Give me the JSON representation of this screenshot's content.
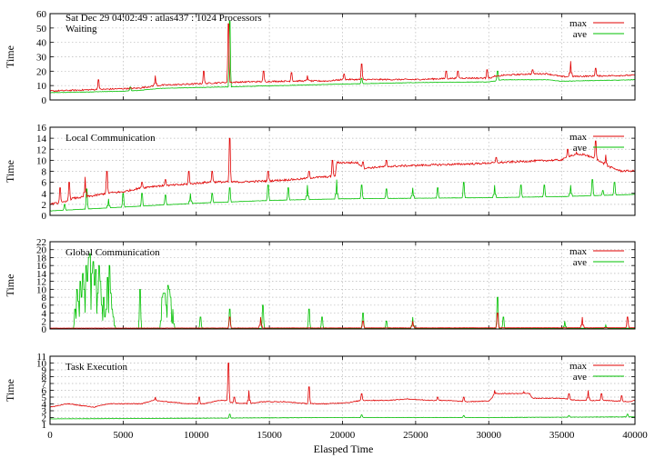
{
  "header": {
    "title": "Sat Dec 29 04:02:49 : atlas437 : 1024 Processors"
  },
  "colors": {
    "max": "#e00000",
    "ave": "#00c000",
    "grid": "#b8b8b8"
  },
  "xaxis": {
    "label": "Elasped Time",
    "range": [
      0,
      40000
    ],
    "ticks": [
      "0",
      "5000",
      "10000",
      "15000",
      "20000",
      "25000",
      "30000",
      "35000",
      "40000"
    ]
  },
  "legend": {
    "max": "max",
    "ave": "ave"
  },
  "chart_data": [
    {
      "type": "line",
      "title": "Waiting",
      "ylabel": "Time",
      "ylim": [
        0,
        60
      ],
      "yticks": [
        "0",
        "10",
        "20",
        "30",
        "40",
        "50",
        "60"
      ],
      "legend_position": "top-right",
      "grid": true,
      "series": [
        {
          "name": "max",
          "base": [
            [
              0,
              6
            ],
            [
              3000,
              7
            ],
            [
              6000,
              8
            ],
            [
              7500,
              10
            ],
            [
              10000,
              11
            ],
            [
              12000,
              12
            ],
            [
              14000,
              12.5
            ],
            [
              17000,
              13
            ],
            [
              19000,
              13
            ],
            [
              20000,
              14
            ],
            [
              25000,
              14
            ],
            [
              28000,
              15
            ],
            [
              30000,
              15
            ],
            [
              31000,
              17
            ],
            [
              33000,
              18
            ],
            [
              34000,
              18
            ],
            [
              35000,
              16
            ],
            [
              40000,
              17
            ]
          ],
          "spikes": [
            [
              12200,
              53
            ],
            [
              3300,
              14
            ],
            [
              7200,
              17
            ],
            [
              10500,
              20
            ],
            [
              14600,
              20
            ],
            [
              16500,
              19
            ],
            [
              17600,
              17
            ],
            [
              20100,
              18
            ],
            [
              21300,
              25
            ],
            [
              27100,
              20
            ],
            [
              27900,
              20
            ],
            [
              29900,
              21
            ],
            [
              30400,
              17
            ],
            [
              33000,
              21
            ],
            [
              35600,
              27
            ],
            [
              37300,
              22
            ]
          ],
          "noise": 1.0
        },
        {
          "name": "ave",
          "base": [
            [
              0,
              5
            ],
            [
              5000,
              6
            ],
            [
              6000,
              6.5
            ],
            [
              7500,
              8
            ],
            [
              12000,
              9
            ],
            [
              16000,
              10
            ],
            [
              20000,
              11
            ],
            [
              25000,
              12
            ],
            [
              30000,
              12.5
            ],
            [
              31000,
              14
            ],
            [
              34000,
              14
            ],
            [
              35000,
              13
            ],
            [
              40000,
              14
            ]
          ],
          "spikes": [
            [
              12300,
              55
            ],
            [
              30600,
              20
            ],
            [
              5500,
              9
            ],
            [
              21300,
              15
            ]
          ],
          "noise": 0.3
        }
      ]
    },
    {
      "type": "line",
      "title": "Local Communication",
      "ylabel": "Time",
      "ylim": [
        0,
        16
      ],
      "yticks": [
        "0",
        "2",
        "4",
        "6",
        "8",
        "10",
        "12",
        "14",
        "16"
      ],
      "legend_position": "top-right",
      "grid": true,
      "series": [
        {
          "name": "max",
          "base": [
            [
              0,
              2
            ],
            [
              1000,
              2.3
            ],
            [
              1500,
              3
            ],
            [
              3000,
              3.5
            ],
            [
              4000,
              4
            ],
            [
              5000,
              4.2
            ],
            [
              6000,
              4.8
            ],
            [
              7000,
              5.2
            ],
            [
              9000,
              5.5
            ],
            [
              11000,
              6
            ],
            [
              13000,
              6
            ],
            [
              15000,
              6.2
            ],
            [
              17000,
              6.5
            ],
            [
              18000,
              6.8
            ],
            [
              19500,
              7
            ],
            [
              19600,
              9.5
            ],
            [
              21000,
              9.5
            ],
            [
              21500,
              8.5
            ],
            [
              23000,
              8.8
            ],
            [
              25000,
              9
            ],
            [
              29000,
              9.3
            ],
            [
              33000,
              9.8
            ],
            [
              35000,
              10
            ],
            [
              35600,
              10.8
            ],
            [
              36500,
              11
            ],
            [
              37500,
              10
            ],
            [
              38000,
              9
            ],
            [
              39000,
              8
            ],
            [
              40000,
              8
            ]
          ],
          "spikes": [
            [
              700,
              5
            ],
            [
              1300,
              6
            ],
            [
              2400,
              7
            ],
            [
              3900,
              8
            ],
            [
              6300,
              6
            ],
            [
              7900,
              6.5
            ],
            [
              9500,
              8
            ],
            [
              11100,
              8
            ],
            [
              12300,
              14
            ],
            [
              14900,
              8
            ],
            [
              17700,
              8
            ],
            [
              19300,
              10
            ],
            [
              21400,
              9.7
            ],
            [
              23000,
              10
            ],
            [
              30500,
              10.5
            ],
            [
              35400,
              12
            ],
            [
              36000,
              11.5
            ],
            [
              37300,
              13.5
            ],
            [
              38000,
              11
            ]
          ],
          "noise": 0.35
        },
        {
          "name": "ave",
          "base": [
            [
              0,
              0.8
            ],
            [
              1500,
              1
            ],
            [
              5000,
              1.5
            ],
            [
              10000,
              2.2
            ],
            [
              15000,
              2.7
            ],
            [
              20000,
              3
            ],
            [
              25000,
              3.1
            ],
            [
              30000,
              3.2
            ],
            [
              35000,
              3.4
            ],
            [
              40000,
              3.8
            ]
          ],
          "spikes": [
            [
              1000,
              2
            ],
            [
              2500,
              4.8
            ],
            [
              4000,
              3
            ],
            [
              5000,
              4
            ],
            [
              6300,
              4
            ],
            [
              7900,
              3.7
            ],
            [
              9600,
              4
            ],
            [
              11100,
              4
            ],
            [
              12300,
              5
            ],
            [
              14900,
              5.5
            ],
            [
              16300,
              5
            ],
            [
              17600,
              5.5
            ],
            [
              19600,
              6.5
            ],
            [
              21300,
              5.5
            ],
            [
              23000,
              4.8
            ],
            [
              24800,
              5
            ],
            [
              26500,
              5
            ],
            [
              28300,
              6
            ],
            [
              30400,
              5.5
            ],
            [
              32200,
              5.5
            ],
            [
              33800,
              5.5
            ],
            [
              35600,
              5.5
            ],
            [
              37100,
              6.5
            ],
            [
              37800,
              4.5
            ],
            [
              38600,
              6
            ]
          ],
          "noise": 0.05
        }
      ]
    },
    {
      "type": "line",
      "title": "Global Communication",
      "ylabel": "Time",
      "ylim": [
        0,
        22
      ],
      "yticks": [
        "0",
        "2",
        "4",
        "6",
        "8",
        "10",
        "12",
        "14",
        "16",
        "18",
        "20",
        "22"
      ],
      "legend_position": "top-right",
      "grid": true,
      "series": [
        {
          "name": "max",
          "base": [
            [
              0,
              0.2
            ],
            [
              40000,
              0.3
            ]
          ],
          "spikes": [
            [
              12300,
              3
            ],
            [
              14400,
              3
            ],
            [
              21400,
              2
            ],
            [
              24800,
              2
            ],
            [
              30600,
              4
            ],
            [
              36400,
              3
            ],
            [
              39500,
              3
            ]
          ],
          "noise": 0.05
        },
        {
          "name": "ave",
          "base": [
            [
              0,
              0.1
            ],
            [
              40000,
              0.2
            ]
          ],
          "spikes": [
            [
              1700,
              5
            ],
            [
              1850,
              10
            ],
            [
              1950,
              7
            ],
            [
              2050,
              12
            ],
            [
              2150,
              8
            ],
            [
              2250,
              14
            ],
            [
              2350,
              10
            ],
            [
              2450,
              16
            ],
            [
              2550,
              12
            ],
            [
              2650,
              18
            ],
            [
              2750,
              19
            ],
            [
              2850,
              14
            ],
            [
              2950,
              17
            ],
            [
              3050,
              11
            ],
            [
              3150,
              15
            ],
            [
              3250,
              9
            ],
            [
              3350,
              16
            ],
            [
              3450,
              12
            ],
            [
              3550,
              6
            ],
            [
              3650,
              8
            ],
            [
              3750,
              3
            ],
            [
              3850,
              5
            ],
            [
              3950,
              13
            ],
            [
              4050,
              16
            ],
            [
              4150,
              9
            ],
            [
              4250,
              5
            ],
            [
              4350,
              3
            ],
            [
              6150,
              10
            ],
            [
              7650,
              8
            ],
            [
              7750,
              9
            ],
            [
              7850,
              9
            ],
            [
              7950,
              6
            ],
            [
              8050,
              11
            ],
            [
              8150,
              10
            ],
            [
              8250,
              8
            ],
            [
              8400,
              5
            ],
            [
              10300,
              3
            ],
            [
              12300,
              5
            ],
            [
              14550,
              6
            ],
            [
              17700,
              5
            ],
            [
              18600,
              3
            ],
            [
              21400,
              4
            ],
            [
              23000,
              2
            ],
            [
              24800,
              3
            ],
            [
              30600,
              8
            ],
            [
              31000,
              3
            ],
            [
              35200,
              2
            ],
            [
              38000,
              1
            ]
          ],
          "noise": 0.05
        }
      ]
    },
    {
      "type": "line",
      "title": "Task Execution",
      "ylabel": "Time",
      "ylim": [
        1,
        11
      ],
      "yticks": [
        "1",
        "2",
        "3",
        "4",
        "5",
        "6",
        "7",
        "8",
        "9",
        "10",
        "11"
      ],
      "legend_position": "top-right",
      "grid": true,
      "series": [
        {
          "name": "max",
          "base": [
            [
              0,
              3.5
            ],
            [
              1200,
              4
            ],
            [
              3000,
              3.5
            ],
            [
              4000,
              4
            ],
            [
              5000,
              4
            ],
            [
              6300,
              4
            ],
            [
              7000,
              4.5
            ],
            [
              8500,
              4.2
            ],
            [
              9500,
              4
            ],
            [
              10500,
              4
            ],
            [
              11500,
              4.5
            ],
            [
              12100,
              4.5
            ],
            [
              12300,
              4.2
            ],
            [
              13500,
              4
            ],
            [
              14500,
              4.3
            ],
            [
              16000,
              4.3
            ],
            [
              17700,
              4
            ],
            [
              19000,
              4
            ],
            [
              20500,
              4.2
            ],
            [
              21300,
              4.5
            ],
            [
              23000,
              4.5
            ],
            [
              24500,
              4.7
            ],
            [
              26000,
              4.5
            ],
            [
              27000,
              4.5
            ],
            [
              28500,
              4.3
            ],
            [
              30000,
              4.4
            ],
            [
              30500,
              5.5
            ],
            [
              32800,
              5.5
            ],
            [
              33000,
              4.8
            ],
            [
              35000,
              4.8
            ],
            [
              36000,
              4.5
            ],
            [
              38000,
              4.5
            ],
            [
              39500,
              4.3
            ],
            [
              40000,
              4.5
            ]
          ],
          "spikes": [
            [
              7200,
              5
            ],
            [
              10200,
              5
            ],
            [
              12200,
              10
            ],
            [
              12600,
              5
            ],
            [
              13600,
              6
            ],
            [
              17700,
              6.5
            ],
            [
              21300,
              5.5
            ],
            [
              26500,
              5
            ],
            [
              28300,
              5
            ],
            [
              30400,
              6
            ],
            [
              32400,
              5.8
            ],
            [
              35500,
              5.5
            ],
            [
              36800,
              6
            ],
            [
              37700,
              5.5
            ],
            [
              39100,
              5.2
            ]
          ],
          "noise": 0.12
        },
        {
          "name": "ave",
          "base": [
            [
              0,
              1.8
            ],
            [
              10000,
              1.9
            ],
            [
              20000,
              2
            ],
            [
              30000,
              2
            ],
            [
              40000,
              2.1
            ]
          ],
          "spikes": [
            [
              12300,
              2.5
            ],
            [
              21300,
              2.4
            ],
            [
              28300,
              2.3
            ],
            [
              35500,
              2.3
            ],
            [
              39500,
              2.5
            ]
          ],
          "noise": 0.04
        }
      ]
    }
  ]
}
